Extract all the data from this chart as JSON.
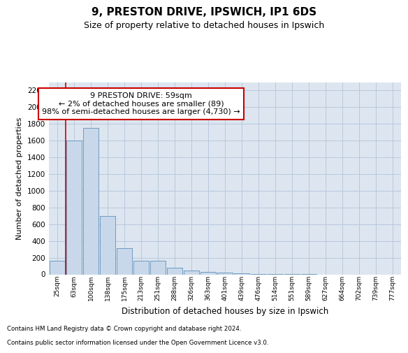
{
  "title1": "9, PRESTON DRIVE, IPSWICH, IP1 6DS",
  "title2": "Size of property relative to detached houses in Ipswich",
  "xlabel": "Distribution of detached houses by size in Ipswich",
  "ylabel": "Number of detached properties",
  "footnote1": "Contains HM Land Registry data © Crown copyright and database right 2024.",
  "footnote2": "Contains public sector information licensed under the Open Government Licence v3.0.",
  "categories": [
    "25sqm",
    "63sqm",
    "100sqm",
    "138sqm",
    "175sqm",
    "213sqm",
    "251sqm",
    "288sqm",
    "326sqm",
    "363sqm",
    "401sqm",
    "439sqm",
    "476sqm",
    "514sqm",
    "551sqm",
    "589sqm",
    "627sqm",
    "664sqm",
    "702sqm",
    "739sqm",
    "777sqm"
  ],
  "values": [
    160,
    1600,
    1750,
    700,
    310,
    160,
    160,
    80,
    45,
    30,
    20,
    15,
    5,
    2,
    1,
    1,
    0,
    0,
    0,
    0,
    0
  ],
  "bar_color": "#c8d8ea",
  "bar_edge_color": "#6090b8",
  "red_line_x": 0.5,
  "annotation_text_line1": "9 PRESTON DRIVE: 59sqm",
  "annotation_text_line2": "← 2% of detached houses are smaller (89)",
  "annotation_text_line3": "98% of semi-detached houses are larger (4,730) →",
  "annotation_box_facecolor": "#ffffff",
  "annotation_box_edgecolor": "#cc0000",
  "red_line_color": "#cc0000",
  "ylim": [
    0,
    2300
  ],
  "yticks": [
    0,
    200,
    400,
    600,
    800,
    1000,
    1200,
    1400,
    1600,
    1800,
    2000,
    2200
  ],
  "grid_color": "#b8c8dc",
  "bg_color": "#ffffff",
  "plot_bg_color": "#dde6f0"
}
